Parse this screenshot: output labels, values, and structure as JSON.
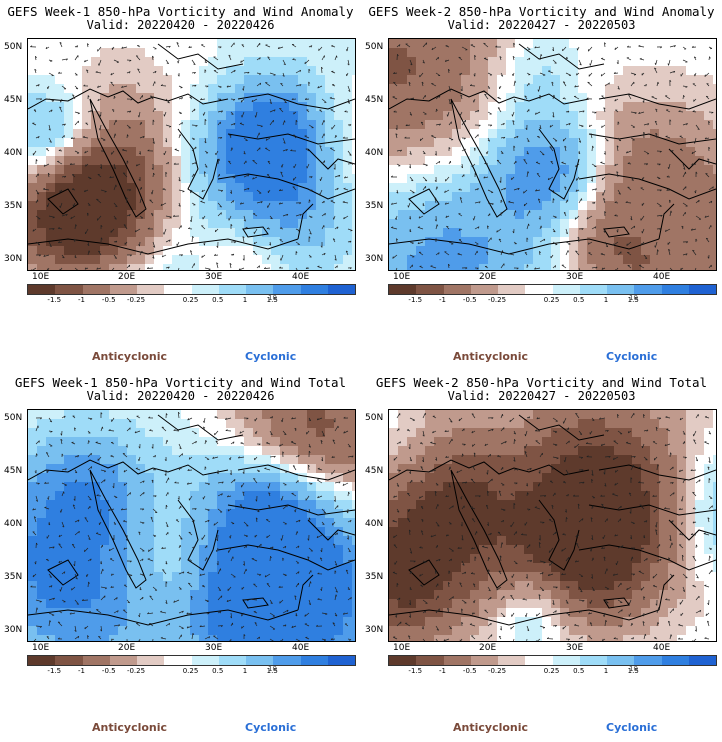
{
  "panels": [
    {
      "title": "GEFS Week-1 850-hPa Vorticity and Wind Anomaly",
      "valid": "Valid: 20220420 - 20220426",
      "seed": 11
    },
    {
      "title": "GEFS Week-2 850-hPa Vorticity and Wind Anomaly",
      "valid": "Valid: 20220427 - 20220503",
      "seed": 23
    },
    {
      "title": "GEFS Week-1 850-hPa Vorticity and Wind Total",
      "valid": "Valid: 20220420 - 20220426",
      "seed": 37
    },
    {
      "title": "GEFS Week-2 850-hPa Vorticity and Wind Total",
      "valid": "Valid: 20220427 - 20220503",
      "seed": 53
    }
  ],
  "axes": {
    "lat_labels": [
      "50N",
      "45N",
      "40N",
      "35N",
      "30N"
    ],
    "lon_labels": [
      "10E",
      "20E",
      "30E",
      "40E"
    ]
  },
  "colorbar": {
    "labels": [
      "-1.5",
      "-1",
      "-0.5",
      "-0.25",
      "0.25",
      "0.5",
      "1",
      "1.5"
    ],
    "unit": "10",
    "colors": [
      "#5e3a2c",
      "#7f5444",
      "#a07565",
      "#c09a8d",
      "#e2cbc4",
      "#ffffff",
      "#cdf0fa",
      "#9fdcf8",
      "#79c0f0",
      "#4f9cea",
      "#2f7fe0",
      "#1f62d2"
    ]
  },
  "legend": {
    "anticyclonic": "Anticyclonic",
    "cyclonic": "Cyclonic"
  },
  "colors": {
    "anticyclonic_text": "#7a4a3a",
    "cyclonic_text": "#2a6fd6"
  }
}
